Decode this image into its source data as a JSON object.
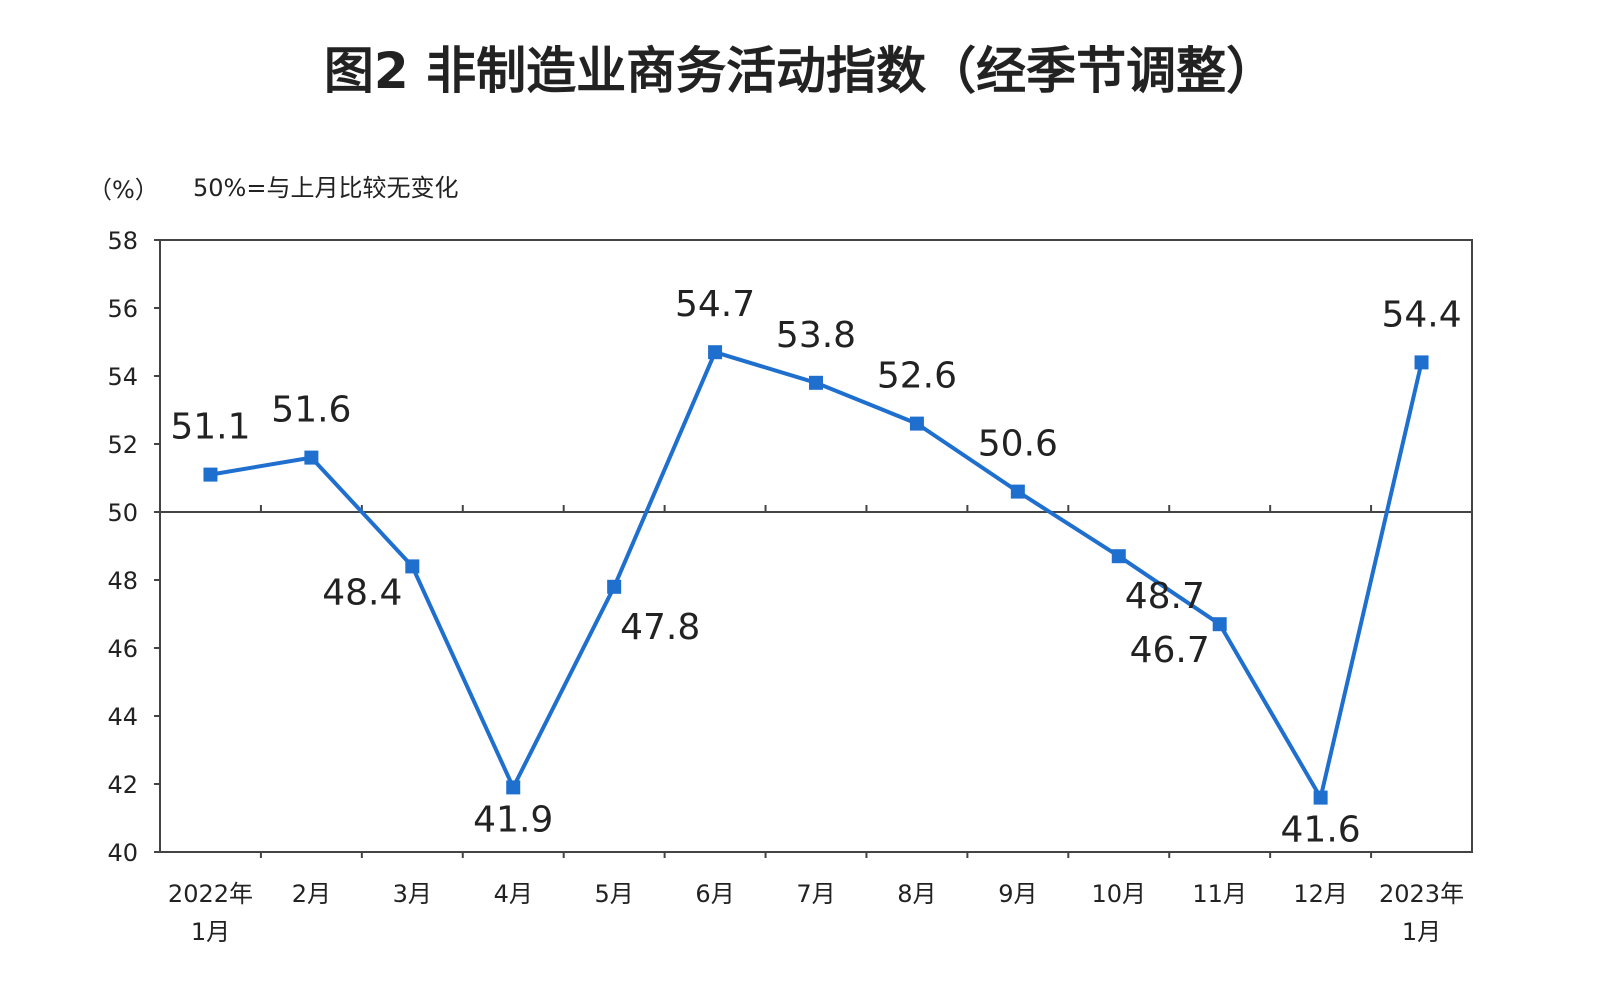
{
  "chart_data": {
    "type": "line",
    "title": "图2  非制造业商务活动指数（经季节调整）",
    "ylabel": "（%）",
    "note": "50%=与上月比较无变化",
    "ylim": [
      40,
      58
    ],
    "yticks": [
      "40",
      "42",
      "44",
      "46",
      "48",
      "50",
      "52",
      "54",
      "56",
      "58"
    ],
    "reference_line": 50,
    "categories": [
      [
        "2022年",
        "1月"
      ],
      [
        "2月"
      ],
      [
        "3月"
      ],
      [
        "4月"
      ],
      [
        "5月"
      ],
      [
        "6月"
      ],
      [
        "7月"
      ],
      [
        "8月"
      ],
      [
        "9月"
      ],
      [
        "10月"
      ],
      [
        "11月"
      ],
      [
        "12月"
      ],
      [
        "2023年",
        "1月"
      ]
    ],
    "series": [
      {
        "values": [
          51.1,
          51.6,
          48.4,
          41.9,
          47.8,
          54.7,
          53.8,
          52.6,
          50.6,
          48.7,
          46.7,
          41.6,
          54.4
        ],
        "labels": [
          "51.1",
          "51.6",
          "48.4",
          "41.9",
          "47.8",
          "54.7",
          "53.8",
          "52.6",
          "50.6",
          "48.7",
          "46.7",
          "41.6",
          "54.4"
        ]
      }
    ],
    "label_positions": [
      "above",
      "above",
      "below-left",
      "below",
      "below-right",
      "above",
      "above",
      "above",
      "above",
      "below-right",
      "below-left",
      "below",
      "above"
    ],
    "grid": false,
    "legend": "none",
    "colors": {
      "line": "#1f6fcf",
      "marker": "#1f6fcf",
      "axis": "#444444",
      "text": "#222222"
    }
  }
}
